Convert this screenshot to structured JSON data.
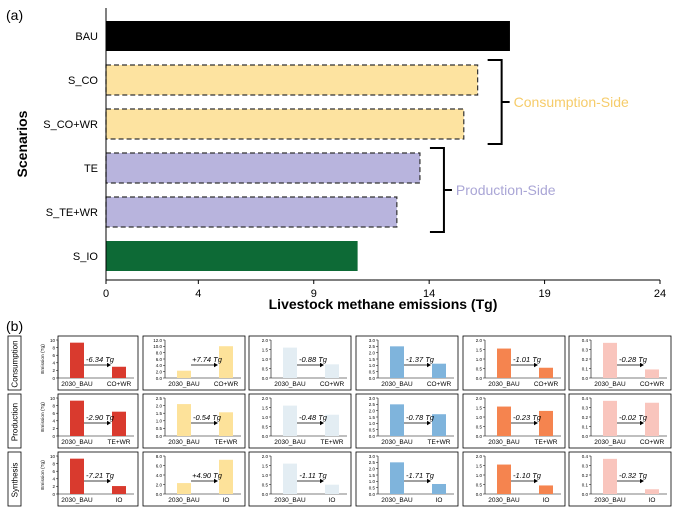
{
  "chart_data": [
    {
      "type": "bar",
      "orientation": "horizontal",
      "panel_label": "(a)",
      "categories": [
        "BAU",
        "S_CO",
        "S_CO+WR",
        "TE",
        "S_TE+WR",
        "S_IO"
      ],
      "values": [
        17.5,
        16.1,
        15.5,
        13.6,
        12.6,
        10.9
      ],
      "bar_colors": [
        "#000000",
        "#fde3a0",
        "#fde3a0",
        "#b8b4dd",
        "#b8b4dd",
        "#0d6a36"
      ],
      "bar_dashed": [
        false,
        true,
        true,
        true,
        true,
        false
      ],
      "xlabel": "Livestock methane emissions (Tg)",
      "ylabel": "Scenarios",
      "xlim": [
        0,
        24
      ],
      "xticks": [
        0,
        4,
        9,
        14,
        19,
        24
      ],
      "groups": [
        {
          "label": "Consumption-Side",
          "color": "#f6cc6a",
          "categories": [
            "S_CO",
            "S_CO+WR"
          ]
        },
        {
          "label": "Production-Side",
          "color": "#aaa6d6",
          "categories": [
            "TE",
            "S_TE+WR"
          ]
        }
      ]
    },
    {
      "type": "bar",
      "panel_label": "(b)",
      "ylabel": "Emission (Tg)",
      "row_labels": [
        "Consumption",
        "Production",
        "Synthesis"
      ],
      "columns": [
        {
          "color": "#d93a2e",
          "panels": [
            {
              "categories": [
                "2030_BAU",
                "CO+WR"
              ],
              "values": [
                9.3,
                2.96
              ],
              "ylim": [
                0,
                10
              ],
              "yticks": [
                "0",
                "2",
                "4",
                "6",
                "8",
                "10"
              ],
              "annotation": "-6.34 Tg"
            },
            {
              "categories": [
                "2030_BAU",
                "TE+WR"
              ],
              "values": [
                9.3,
                6.4
              ],
              "ylim": [
                0,
                10
              ],
              "yticks": [
                "0",
                "2",
                "4",
                "6",
                "8",
                "10"
              ],
              "annotation": "-2.90 Tg"
            },
            {
              "categories": [
                "2030_BAU",
                "IO"
              ],
              "values": [
                9.3,
                2.09
              ],
              "ylim": [
                0,
                10
              ],
              "yticks": [
                "0",
                "2",
                "4",
                "6",
                "8",
                "10"
              ],
              "annotation": "-7.21 Tg"
            }
          ]
        },
        {
          "color": "#fde29a",
          "panels": [
            {
              "categories": [
                "2030_BAU",
                "CO+WR"
              ],
              "values": [
                2.3,
                10.04
              ],
              "ylim": [
                0,
                12
              ],
              "yticks": [
                "0.0",
                "2.0",
                "4.0",
                "6.0",
                "8.0",
                "10.0",
                "12.0"
              ],
              "annotation": "+7.74 Tg"
            },
            {
              "categories": [
                "2030_BAU",
                "TE+WR"
              ],
              "values": [
                2.1,
                1.56
              ],
              "ylim": [
                0,
                2.5
              ],
              "yticks": [
                "0.0",
                "0.5",
                "1.0",
                "1.5",
                "2.0",
                "2.5"
              ],
              "annotation": "-0.54 Tg"
            },
            {
              "categories": [
                "2030_BAU",
                "IO"
              ],
              "values": [
                2.3,
                7.2
              ],
              "ylim": [
                0,
                8
              ],
              "yticks": [
                "0.0",
                "2.0",
                "4.0",
                "6.0",
                "8.0"
              ],
              "annotation": "+4.90 Tg"
            }
          ]
        },
        {
          "color": "#e3edf3",
          "panels": [
            {
              "categories": [
                "2030_BAU",
                "CO+WR"
              ],
              "values": [
                1.6,
                0.72
              ],
              "ylim": [
                0,
                2
              ],
              "yticks": [
                "0.0",
                "0.5",
                "1.0",
                "1.5",
                "2.0"
              ],
              "annotation": "-0.88 Tg"
            },
            {
              "categories": [
                "2030_BAU",
                "TE+WR"
              ],
              "values": [
                1.6,
                1.12
              ],
              "ylim": [
                0,
                2
              ],
              "yticks": [
                "0.0",
                "0.5",
                "1.0",
                "1.5",
                "2.0"
              ],
              "annotation": "-0.48 Tg"
            },
            {
              "categories": [
                "2030_BAU",
                "IO"
              ],
              "values": [
                1.6,
                0.49
              ],
              "ylim": [
                0,
                2
              ],
              "yticks": [
                "0.0",
                "0.5",
                "1.0",
                "1.5",
                "2.0"
              ],
              "annotation": "-1.11 Tg"
            }
          ]
        },
        {
          "color": "#7fb4dc",
          "panels": [
            {
              "categories": [
                "2030_BAU",
                "CO+WR"
              ],
              "values": [
                2.5,
                1.13
              ],
              "ylim": [
                0,
                3
              ],
              "yticks": [
                "0.0",
                "0.5",
                "1.0",
                "1.5",
                "2.0",
                "2.5",
                "3.0"
              ],
              "annotation": "-1.37 Tg"
            },
            {
              "categories": [
                "2030_BAU",
                "TE+WR"
              ],
              "values": [
                2.5,
                1.72
              ],
              "ylim": [
                0,
                3
              ],
              "yticks": [
                "0.0",
                "0.5",
                "1.0",
                "1.5",
                "2.0",
                "2.5",
                "3.0"
              ],
              "annotation": "-0.78 Tg"
            },
            {
              "categories": [
                "2030_BAU",
                "IO"
              ],
              "values": [
                2.5,
                0.79
              ],
              "ylim": [
                0,
                3
              ],
              "yticks": [
                "0.0",
                "0.5",
                "1.0",
                "1.5",
                "2.0",
                "2.5",
                "3.0"
              ],
              "annotation": "-1.71 Tg"
            }
          ]
        },
        {
          "color": "#f5844f",
          "panels": [
            {
              "categories": [
                "2030_BAU",
                "CO+WR"
              ],
              "values": [
                1.55,
                0.54
              ],
              "ylim": [
                0,
                2
              ],
              "yticks": [
                "0.0",
                "0.5",
                "1.0",
                "1.5",
                "2.0"
              ],
              "annotation": "-1.01 Tg"
            },
            {
              "categories": [
                "2030_BAU",
                "TE+WR"
              ],
              "values": [
                1.55,
                1.32
              ],
              "ylim": [
                0,
                2
              ],
              "yticks": [
                "0.0",
                "0.5",
                "1.0",
                "1.5",
                "2.0"
              ],
              "annotation": "-0.23 Tg"
            },
            {
              "categories": [
                "2030_BAU",
                "IO"
              ],
              "values": [
                1.55,
                0.45
              ],
              "ylim": [
                0,
                2
              ],
              "yticks": [
                "0.0",
                "0.5",
                "1.0",
                "1.5",
                "2.0"
              ],
              "annotation": "-1.10 Tg"
            }
          ]
        },
        {
          "color": "#f9c5bd",
          "panels": [
            {
              "categories": [
                "2030_BAU",
                "CO+WR"
              ],
              "values": [
                0.37,
                0.09
              ],
              "ylim": [
                0,
                0.4
              ],
              "yticks": [
                "0.0",
                "0.1",
                "0.2",
                "0.3",
                "0.4"
              ],
              "annotation": "-0.28 Tg"
            },
            {
              "categories": [
                "2030_BAU",
                "CO+WR"
              ],
              "values": [
                0.37,
                0.35
              ],
              "ylim": [
                0,
                0.4
              ],
              "yticks": [
                "0.0",
                "0.1",
                "0.2",
                "0.3",
                "0.4"
              ],
              "annotation": "-0.02 Tg"
            },
            {
              "categories": [
                "2030_BAU",
                "IO"
              ],
              "values": [
                0.37,
                0.05
              ],
              "ylim": [
                0,
                0.4
              ],
              "yticks": [
                "0.0",
                "0.1",
                "0.2",
                "0.3",
                "0.4"
              ],
              "annotation": "-0.32 Tg"
            }
          ]
        }
      ]
    }
  ]
}
